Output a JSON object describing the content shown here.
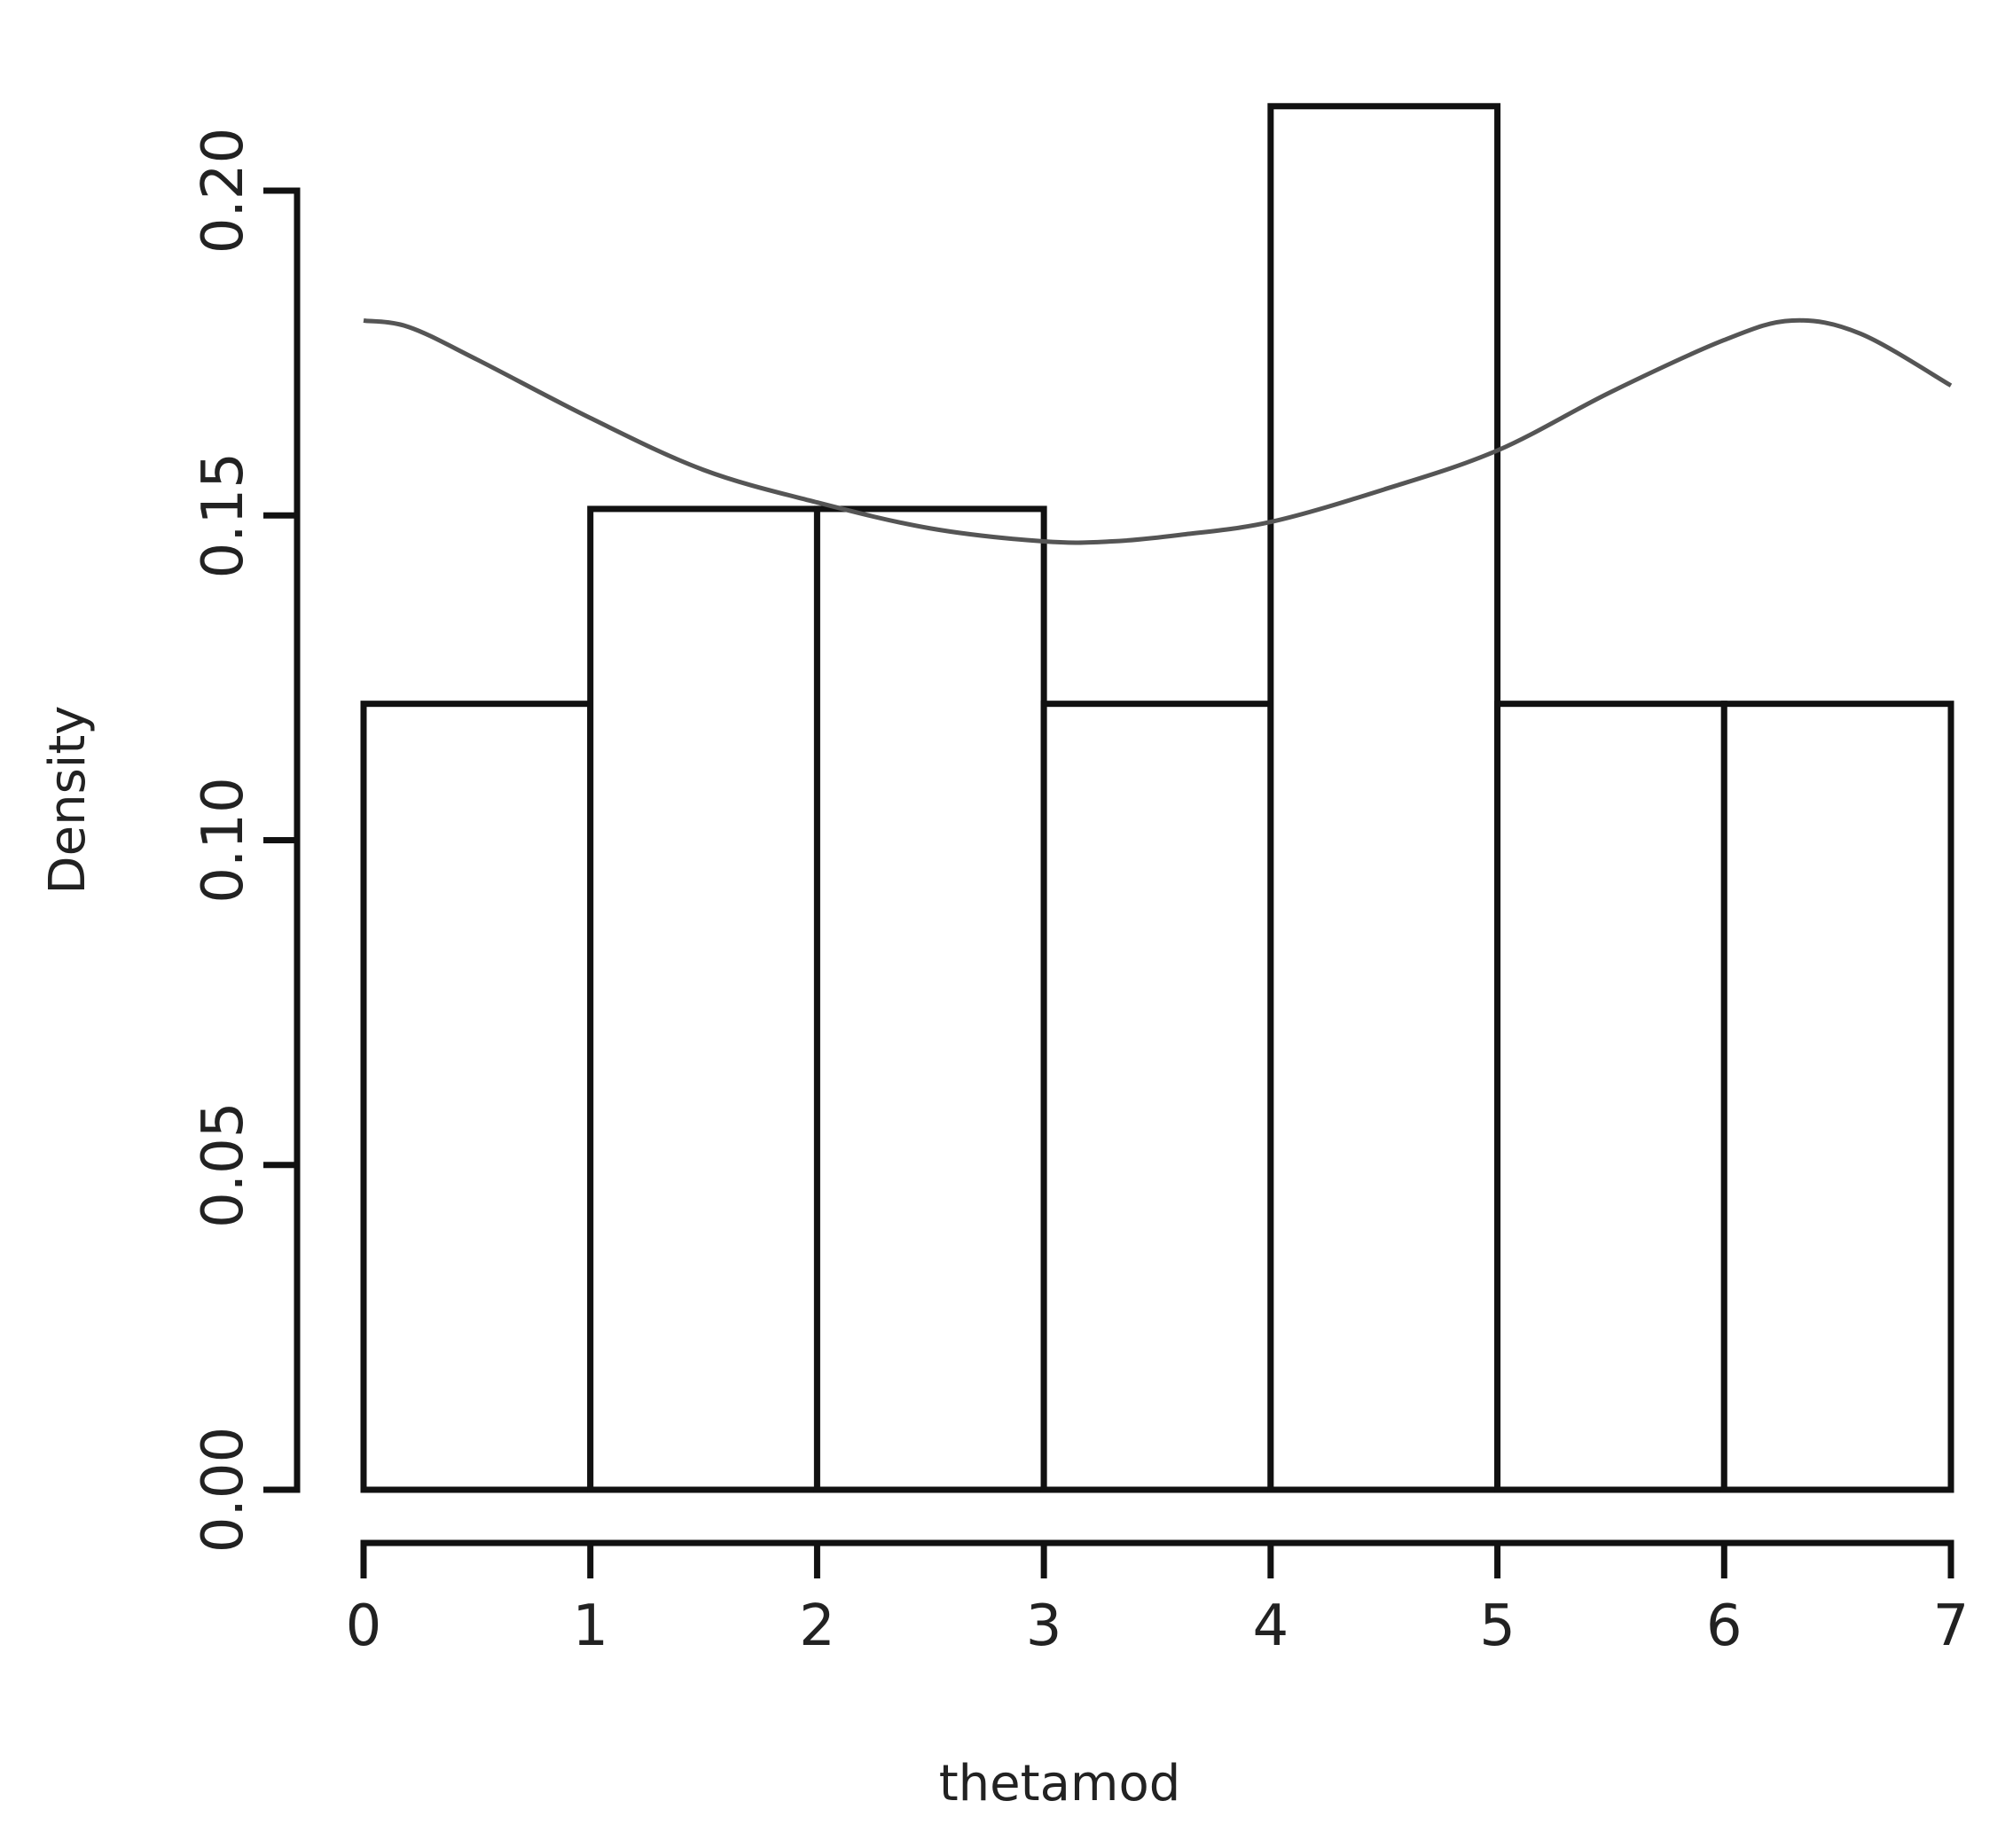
{
  "chart_data": {
    "type": "bar",
    "subtype": "histogram",
    "xlabel": "thetamod",
    "ylabel": "Density",
    "xlim": [
      0,
      7
    ],
    "ylim": [
      0,
      0.2
    ],
    "x_ticks": [
      "0",
      "1",
      "2",
      "3",
      "4",
      "5",
      "6",
      "7"
    ],
    "y_ticks": [
      "0.00",
      "0.05",
      "0.10",
      "0.15",
      "0.20"
    ],
    "bins": [
      {
        "x0": 0,
        "x1": 1,
        "density": 0.121
      },
      {
        "x0": 1,
        "x1": 2,
        "density": 0.151
      },
      {
        "x0": 2,
        "x1": 3,
        "density": 0.151
      },
      {
        "x0": 3,
        "x1": 4,
        "density": 0.121
      },
      {
        "x0": 4,
        "x1": 5,
        "density": 0.213
      },
      {
        "x0": 5,
        "x1": 6,
        "density": 0.121
      },
      {
        "x0": 6,
        "x1": 7,
        "density": 0.121
      }
    ],
    "density_curve": {
      "x": [
        0,
        0.2,
        0.5,
        1.0,
        1.5,
        2.0,
        2.5,
        3.0,
        3.3,
        3.6,
        4.0,
        4.5,
        5.0,
        5.5,
        6.0,
        6.3,
        6.6,
        7.0
      ],
      "y": [
        0.18,
        0.179,
        0.174,
        0.165,
        0.157,
        0.152,
        0.148,
        0.146,
        0.146,
        0.147,
        0.149,
        0.154,
        0.16,
        0.169,
        0.177,
        0.18,
        0.178,
        0.17
      ]
    },
    "grid": false,
    "colors": {
      "bars_outline": "#111111",
      "bars_fill": "#ffffff",
      "curve": "#555555"
    }
  }
}
